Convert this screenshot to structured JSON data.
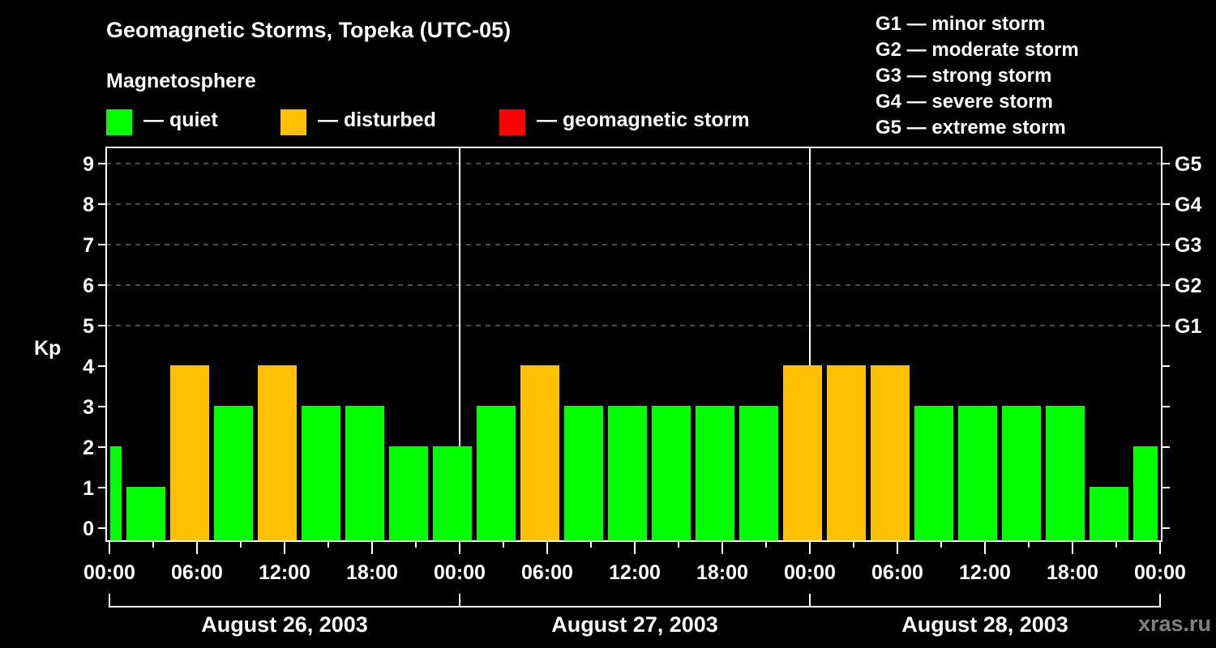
{
  "header": {
    "title": "Geomagnetic Storms, Topeka (UTC-05)",
    "subtitle": "Magnetosphere"
  },
  "legend": [
    {
      "label": "— quiet",
      "color": "#00ff00"
    },
    {
      "label": "— disturbed",
      "color": "#ffc000"
    },
    {
      "label": "— geomagnetic storm",
      "color": "#ff0000"
    }
  ],
  "g_scale_legend": [
    "G1 — minor storm",
    "G2 — moderate storm",
    "G3 — strong storm",
    "G4 — severe storm",
    "G5 — extreme storm"
  ],
  "watermark": "xras.ru",
  "chart_data": {
    "type": "bar",
    "title": "Geomagnetic Storms, Topeka (UTC-05)",
    "xlabel": "",
    "ylabel": "Kp",
    "ylim": [
      0,
      9
    ],
    "yticks": [
      0,
      1,
      2,
      3,
      4,
      5,
      6,
      7,
      8,
      9
    ],
    "right_axis_labels": [
      {
        "y": 5,
        "label": "G1"
      },
      {
        "y": 6,
        "label": "G2"
      },
      {
        "y": 7,
        "label": "G3"
      },
      {
        "y": 8,
        "label": "G4"
      },
      {
        "y": 9,
        "label": "G5"
      }
    ],
    "grid": "dashed horizontal at Kp 5-9",
    "xticks": [
      "00:00",
      "06:00",
      "12:00",
      "18:00",
      "00:00",
      "06:00",
      "12:00",
      "18:00",
      "00:00",
      "06:00",
      "12:00",
      "18:00",
      "00:00"
    ],
    "days": [
      "August 26, 2003",
      "August 27, 2003",
      "August 28, 2003"
    ],
    "interval_hours": 3,
    "first_bar_start_hour": 1,
    "bar_start_hours": [
      0,
      1,
      4,
      7,
      10,
      13,
      16,
      19,
      22,
      25,
      28,
      31,
      34,
      37,
      40,
      43,
      46,
      49,
      52,
      55,
      58,
      61,
      64,
      67,
      70
    ],
    "values": [
      2,
      1,
      4,
      3,
      4,
      3,
      3,
      2,
      2,
      3,
      4,
      3,
      3,
      3,
      3,
      3,
      4,
      4,
      4,
      3,
      3,
      3,
      3,
      1,
      2
    ],
    "categories_color": [
      "quiet",
      "quiet",
      "disturbed",
      "quiet",
      "disturbed",
      "quiet",
      "quiet",
      "quiet",
      "quiet",
      "quiet",
      "disturbed",
      "quiet",
      "quiet",
      "quiet",
      "quiet",
      "quiet",
      "disturbed",
      "disturbed",
      "disturbed",
      "quiet",
      "quiet",
      "quiet",
      "quiet",
      "quiet",
      "quiet"
    ],
    "colors": {
      "quiet": "#00ff00",
      "disturbed": "#ffc000",
      "storm": "#ff0000"
    }
  }
}
